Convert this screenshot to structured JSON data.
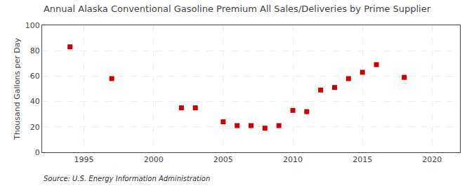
{
  "chart_data": {
    "type": "scatter",
    "title": "Annual Alaska Conventional Gasoline Premium All Sales/Deliveries by Prime Supplier",
    "ylabel": "Thousand Gallons per Day",
    "source": "Source: U.S. Energy Information Administration",
    "x": [
      1994,
      1997,
      2002,
      2003,
      2005,
      2006,
      2007,
      2008,
      2009,
      2010,
      2011,
      2012,
      2013,
      2014,
      2015,
      2016,
      2018
    ],
    "values": [
      83,
      58,
      35,
      35,
      24,
      21,
      21,
      19,
      21,
      33,
      32,
      49,
      51,
      58,
      63,
      69,
      59
    ],
    "color": "#cc0000",
    "marker": "square",
    "xlim": [
      1992,
      2022
    ],
    "xticks": [
      1995,
      2000,
      2005,
      2010,
      2015,
      2020
    ],
    "ylim": [
      0,
      100
    ],
    "yticks": [
      0,
      20,
      40,
      60,
      80,
      100
    ],
    "grid": true
  }
}
